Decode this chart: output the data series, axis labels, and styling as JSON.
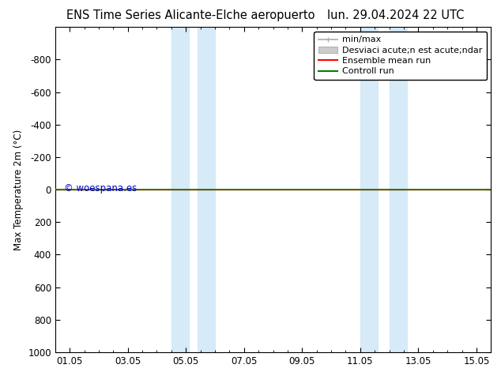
{
  "title_left": "ENS Time Series Alicante-Elche aeropuerto",
  "title_right": "lun. 29.04.2024 22 UTC",
  "ylabel": "Max Temperature 2m (°C)",
  "ylim": [
    -1000,
    1000
  ],
  "yticks": [
    -800,
    -600,
    -400,
    -200,
    0,
    200,
    400,
    600,
    800,
    1000
  ],
  "xtick_positions": [
    0,
    2,
    4,
    6,
    8,
    10,
    12,
    14
  ],
  "xtick_labels": [
    "01.05",
    "03.05",
    "05.05",
    "07.05",
    "09.05",
    "11.05",
    "13.05",
    "15.05"
  ],
  "shaded_bands": [
    [
      3.5,
      4.1
    ],
    [
      4.4,
      5.0
    ],
    [
      10.0,
      10.6
    ],
    [
      11.0,
      11.6
    ]
  ],
  "green_line_y": 0,
  "red_line_y": 0,
  "watermark": "© woespana.es",
  "watermark_color": "#0000cc",
  "background_color": "#ffffff",
  "band_color": "#d6eaf8",
  "legend_label_minmax": "min/max",
  "legend_label_std": "Desviaci acute;n est acute;ndar",
  "legend_label_ensemble": "Ensemble mean run",
  "legend_label_control": "Controll run",
  "legend_color_minmax": "#aaaaaa",
  "legend_color_std": "#cccccc",
  "legend_color_ensemble": "#ff0000",
  "legend_color_control": "#008000",
  "title_fontsize": 10.5,
  "axis_fontsize": 8.5,
  "legend_fontsize": 8
}
